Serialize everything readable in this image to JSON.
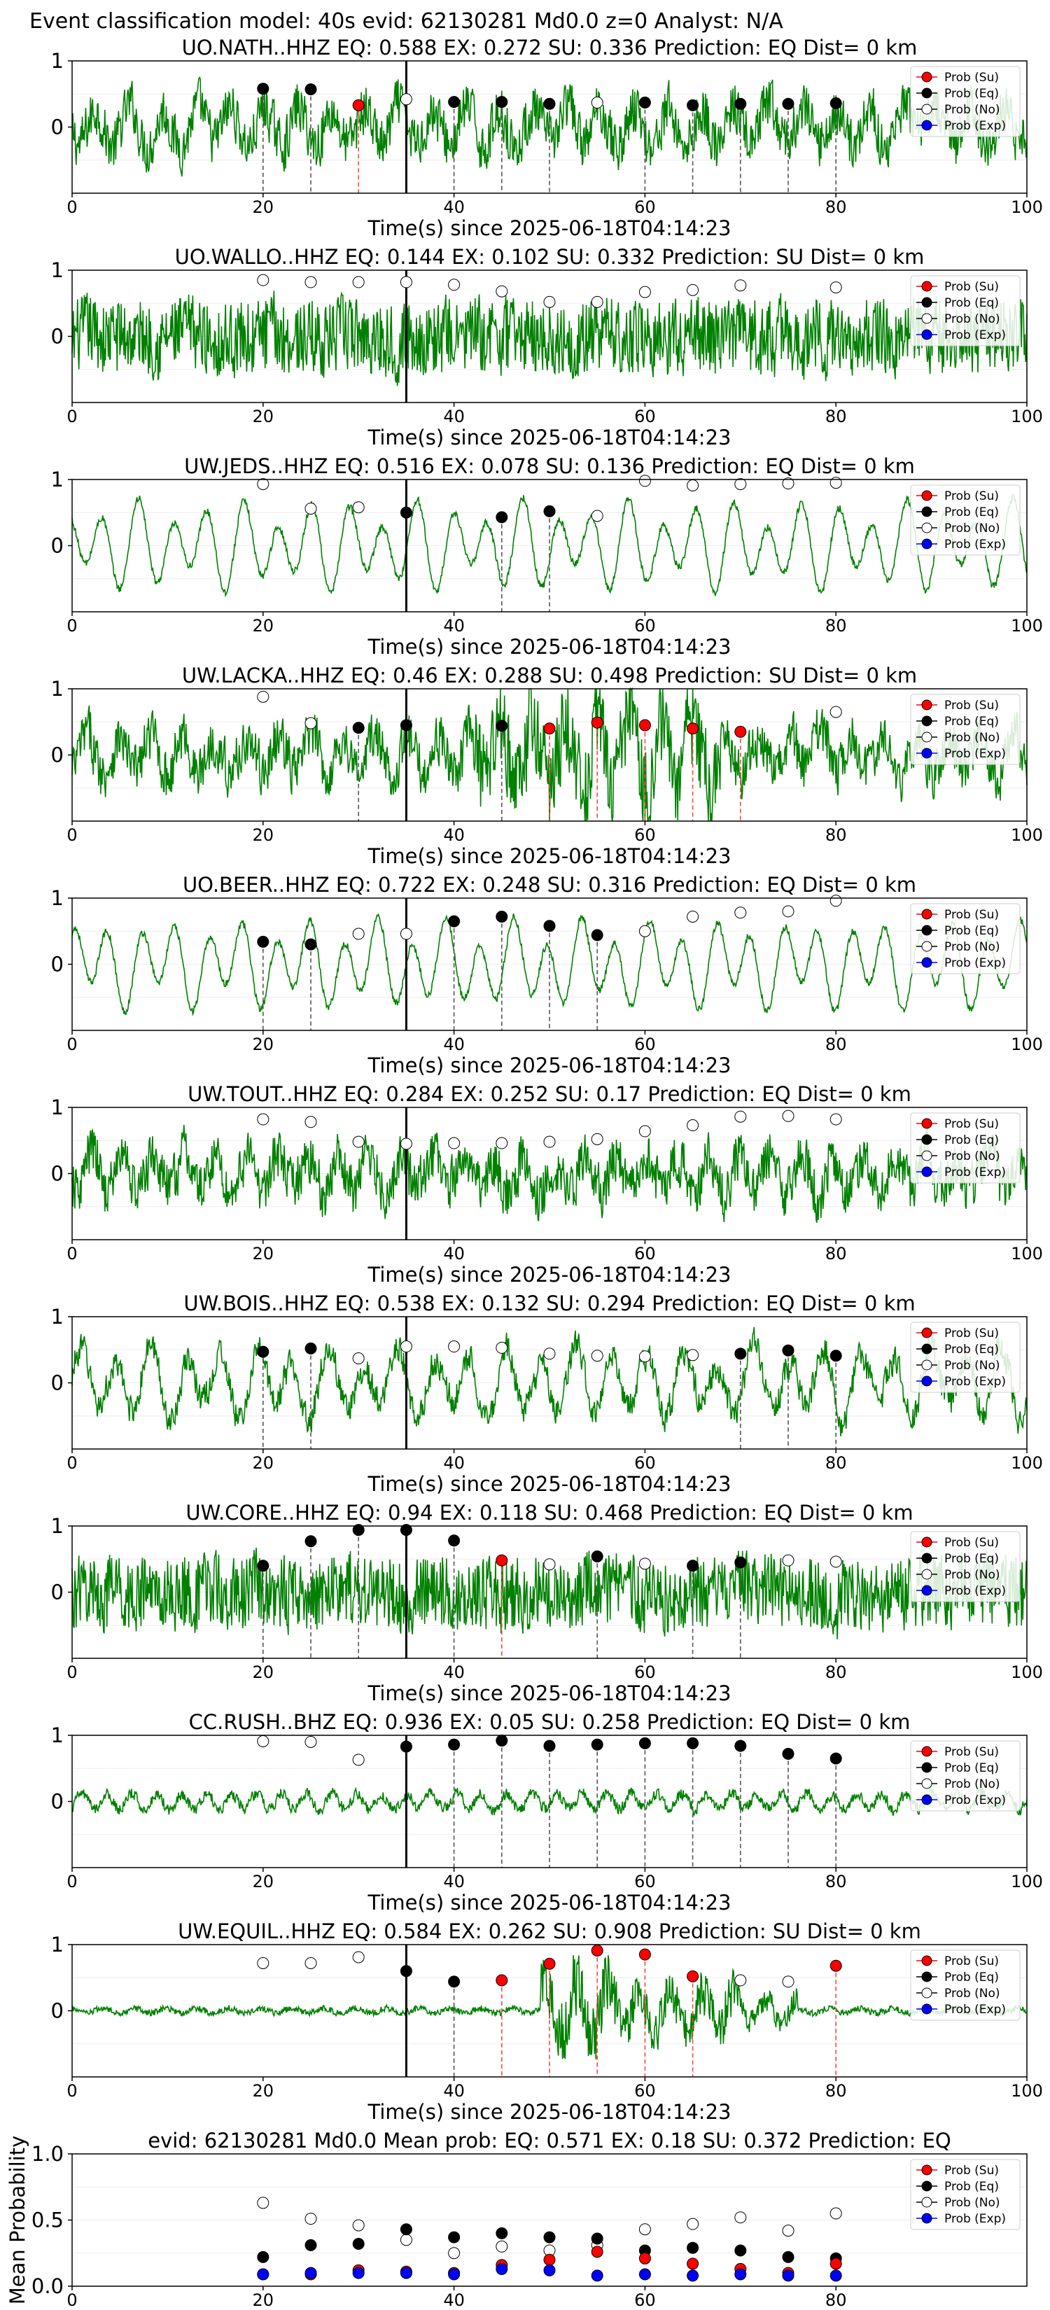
{
  "suptitle": "Event classification model: 40s evid: 62130281 Md0.0 z=0 Analyst: N/A",
  "xlabel": "Time(s) since 2025-06-18T04:14:23",
  "legend": {
    "su": "Prob (Su)",
    "eq": "Prob (Eq)",
    "no": "Prob (No)",
    "exp": "Prob (Exp)"
  },
  "colors": {
    "trace": "#008000",
    "su": "#ff0000",
    "eq": "#000000",
    "no": "#ffffff",
    "exp": "#0000ff",
    "eq_line": "#555555",
    "su_line": "#ff4444"
  },
  "chart_data": [
    {
      "type": "line",
      "title": "UO.NATH..HHZ   EQ: 0.588  EX: 0.272  SU: 0.336   Prediction: EQ    Dist= 0 km",
      "style": "broadband",
      "xlim": [
        0,
        100
      ],
      "ylim": [
        -1,
        1
      ],
      "xticks": [
        0,
        20,
        40,
        60,
        80,
        100
      ],
      "yticks": [
        0,
        1
      ],
      "pick_time": 35,
      "markers": [
        {
          "x": 20,
          "y": 0.58,
          "cls": "eq"
        },
        {
          "x": 25,
          "y": 0.57,
          "cls": "eq"
        },
        {
          "x": 30,
          "y": 0.33,
          "cls": "su"
        },
        {
          "x": 35,
          "y": 0.42,
          "cls": "no"
        },
        {
          "x": 40,
          "y": 0.38,
          "cls": "eq"
        },
        {
          "x": 45,
          "y": 0.38,
          "cls": "eq"
        },
        {
          "x": 50,
          "y": 0.35,
          "cls": "eq"
        },
        {
          "x": 55,
          "y": 0.37,
          "cls": "no"
        },
        {
          "x": 60,
          "y": 0.37,
          "cls": "eq"
        },
        {
          "x": 65,
          "y": 0.33,
          "cls": "eq"
        },
        {
          "x": 70,
          "y": 0.35,
          "cls": "eq"
        },
        {
          "x": 75,
          "y": 0.35,
          "cls": "eq"
        },
        {
          "x": 80,
          "y": 0.36,
          "cls": "eq"
        }
      ]
    },
    {
      "type": "line",
      "title": "UO.WALLO..HHZ   EQ: 0.144  EX: 0.102  SU: 0.332   Prediction: SU    Dist= 0 km",
      "style": "noisy",
      "xlim": [
        0,
        100
      ],
      "ylim": [
        -1,
        1
      ],
      "xticks": [
        0,
        20,
        40,
        60,
        80,
        100
      ],
      "yticks": [
        0,
        1
      ],
      "pick_time": 35,
      "markers": [
        {
          "x": 20,
          "y": 0.85,
          "cls": "no"
        },
        {
          "x": 25,
          "y": 0.82,
          "cls": "no"
        },
        {
          "x": 30,
          "y": 0.82,
          "cls": "no"
        },
        {
          "x": 35,
          "y": 0.82,
          "cls": "no"
        },
        {
          "x": 40,
          "y": 0.78,
          "cls": "no"
        },
        {
          "x": 45,
          "y": 0.68,
          "cls": "no"
        },
        {
          "x": 50,
          "y": 0.52,
          "cls": "no"
        },
        {
          "x": 55,
          "y": 0.52,
          "cls": "no"
        },
        {
          "x": 60,
          "y": 0.67,
          "cls": "no"
        },
        {
          "x": 65,
          "y": 0.7,
          "cls": "no"
        },
        {
          "x": 70,
          "y": 0.77,
          "cls": "no"
        },
        {
          "x": 80,
          "y": 0.74,
          "cls": "no"
        }
      ]
    },
    {
      "type": "line",
      "title": "UW.JEDS..HHZ   EQ: 0.516  EX: 0.078  SU: 0.136   Prediction: EQ    Dist= 0 km",
      "style": "smooth",
      "xlim": [
        0,
        100
      ],
      "ylim": [
        -1,
        1
      ],
      "xticks": [
        0,
        20,
        40,
        60,
        80,
        100
      ],
      "yticks": [
        0,
        1
      ],
      "pick_time": 35,
      "markers": [
        {
          "x": 20,
          "y": 0.93,
          "cls": "no"
        },
        {
          "x": 25,
          "y": 0.56,
          "cls": "no"
        },
        {
          "x": 30,
          "y": 0.58,
          "cls": "no"
        },
        {
          "x": 35,
          "y": 0.5,
          "cls": "eq"
        },
        {
          "x": 45,
          "y": 0.43,
          "cls": "eq"
        },
        {
          "x": 50,
          "y": 0.52,
          "cls": "eq"
        },
        {
          "x": 55,
          "y": 0.45,
          "cls": "no"
        },
        {
          "x": 60,
          "y": 0.98,
          "cls": "no"
        },
        {
          "x": 65,
          "y": 0.91,
          "cls": "no"
        },
        {
          "x": 70,
          "y": 0.93,
          "cls": "no"
        },
        {
          "x": 75,
          "y": 0.94,
          "cls": "no"
        },
        {
          "x": 80,
          "y": 0.95,
          "cls": "no"
        }
      ]
    },
    {
      "type": "line",
      "title": "UW.LACKA..HHZ   EQ: 0.46  EX: 0.288  SU: 0.498   Prediction: SU    Dist= 0 km",
      "style": "burst",
      "xlim": [
        0,
        100
      ],
      "ylim": [
        -1,
        1
      ],
      "xticks": [
        0,
        20,
        40,
        60,
        80,
        100
      ],
      "yticks": [
        0,
        1
      ],
      "pick_time": 35,
      "markers": [
        {
          "x": 20,
          "y": 0.88,
          "cls": "no"
        },
        {
          "x": 25,
          "y": 0.48,
          "cls": "no"
        },
        {
          "x": 30,
          "y": 0.41,
          "cls": "eq"
        },
        {
          "x": 35,
          "y": 0.45,
          "cls": "eq"
        },
        {
          "x": 45,
          "y": 0.44,
          "cls": "eq"
        },
        {
          "x": 50,
          "y": 0.4,
          "cls": "su"
        },
        {
          "x": 55,
          "y": 0.49,
          "cls": "su"
        },
        {
          "x": 60,
          "y": 0.45,
          "cls": "su"
        },
        {
          "x": 65,
          "y": 0.4,
          "cls": "su"
        },
        {
          "x": 70,
          "y": 0.35,
          "cls": "su"
        },
        {
          "x": 80,
          "y": 0.65,
          "cls": "no"
        }
      ]
    },
    {
      "type": "line",
      "title": "UO.BEER..HHZ   EQ: 0.722  EX: 0.248  SU: 0.316   Prediction: EQ    Dist= 0 km",
      "style": "smooth",
      "xlim": [
        0,
        100
      ],
      "ylim": [
        -1,
        1
      ],
      "xticks": [
        0,
        20,
        40,
        60,
        80,
        100
      ],
      "yticks": [
        0,
        1
      ],
      "pick_time": 35,
      "markers": [
        {
          "x": 20,
          "y": 0.34,
          "cls": "eq"
        },
        {
          "x": 25,
          "y": 0.3,
          "cls": "eq"
        },
        {
          "x": 30,
          "y": 0.46,
          "cls": "no"
        },
        {
          "x": 35,
          "y": 0.46,
          "cls": "no"
        },
        {
          "x": 40,
          "y": 0.65,
          "cls": "eq"
        },
        {
          "x": 45,
          "y": 0.72,
          "cls": "eq"
        },
        {
          "x": 50,
          "y": 0.58,
          "cls": "eq"
        },
        {
          "x": 55,
          "y": 0.44,
          "cls": "eq"
        },
        {
          "x": 60,
          "y": 0.5,
          "cls": "no"
        },
        {
          "x": 65,
          "y": 0.72,
          "cls": "no"
        },
        {
          "x": 70,
          "y": 0.78,
          "cls": "no"
        },
        {
          "x": 75,
          "y": 0.8,
          "cls": "no"
        },
        {
          "x": 80,
          "y": 0.96,
          "cls": "no"
        }
      ]
    },
    {
      "type": "line",
      "title": "UW.TOUT..HHZ   EQ: 0.284  EX: 0.252  SU: 0.17   Prediction: EQ    Dist= 0 km",
      "style": "broadband",
      "xlim": [
        0,
        100
      ],
      "ylim": [
        -1,
        1
      ],
      "xticks": [
        0,
        20,
        40,
        60,
        80,
        100
      ],
      "yticks": [
        0,
        1
      ],
      "pick_time": 35,
      "markers": [
        {
          "x": 20,
          "y": 0.82,
          "cls": "no"
        },
        {
          "x": 25,
          "y": 0.78,
          "cls": "no"
        },
        {
          "x": 30,
          "y": 0.48,
          "cls": "no"
        },
        {
          "x": 35,
          "y": 0.45,
          "cls": "no"
        },
        {
          "x": 40,
          "y": 0.46,
          "cls": "no"
        },
        {
          "x": 45,
          "y": 0.46,
          "cls": "no"
        },
        {
          "x": 50,
          "y": 0.48,
          "cls": "no"
        },
        {
          "x": 55,
          "y": 0.52,
          "cls": "no"
        },
        {
          "x": 60,
          "y": 0.64,
          "cls": "no"
        },
        {
          "x": 65,
          "y": 0.73,
          "cls": "no"
        },
        {
          "x": 70,
          "y": 0.86,
          "cls": "no"
        },
        {
          "x": 75,
          "y": 0.87,
          "cls": "no"
        },
        {
          "x": 80,
          "y": 0.82,
          "cls": "no"
        }
      ]
    },
    {
      "type": "line",
      "title": "UW.BOIS..HHZ   EQ: 0.538  EX: 0.132  SU: 0.294   Prediction: EQ    Dist= 0 km",
      "style": "smoothnoisy",
      "xlim": [
        0,
        100
      ],
      "ylim": [
        -1,
        1
      ],
      "xticks": [
        0,
        20,
        40,
        60,
        80,
        100
      ],
      "yticks": [
        0,
        1
      ],
      "pick_time": 35,
      "markers": [
        {
          "x": 20,
          "y": 0.47,
          "cls": "eq"
        },
        {
          "x": 25,
          "y": 0.52,
          "cls": "eq"
        },
        {
          "x": 30,
          "y": 0.37,
          "cls": "no"
        },
        {
          "x": 35,
          "y": 0.55,
          "cls": "no"
        },
        {
          "x": 40,
          "y": 0.55,
          "cls": "no"
        },
        {
          "x": 45,
          "y": 0.53,
          "cls": "no"
        },
        {
          "x": 50,
          "y": 0.44,
          "cls": "no"
        },
        {
          "x": 55,
          "y": 0.41,
          "cls": "no"
        },
        {
          "x": 60,
          "y": 0.4,
          "cls": "no"
        },
        {
          "x": 65,
          "y": 0.42,
          "cls": "no"
        },
        {
          "x": 70,
          "y": 0.44,
          "cls": "eq"
        },
        {
          "x": 75,
          "y": 0.49,
          "cls": "eq"
        },
        {
          "x": 80,
          "y": 0.41,
          "cls": "eq"
        }
      ]
    },
    {
      "type": "line",
      "title": "UW.CORE..HHZ   EQ: 0.94  EX: 0.118  SU: 0.468   Prediction: EQ    Dist= 0 km",
      "style": "noisy",
      "xlim": [
        0,
        100
      ],
      "ylim": [
        -1,
        1
      ],
      "xticks": [
        0,
        20,
        40,
        60,
        80,
        100
      ],
      "yticks": [
        0,
        1
      ],
      "pick_time": 35,
      "markers": [
        {
          "x": 20,
          "y": 0.4,
          "cls": "eq"
        },
        {
          "x": 25,
          "y": 0.77,
          "cls": "eq"
        },
        {
          "x": 30,
          "y": 0.94,
          "cls": "eq"
        },
        {
          "x": 35,
          "y": 0.94,
          "cls": "eq"
        },
        {
          "x": 40,
          "y": 0.78,
          "cls": "eq"
        },
        {
          "x": 45,
          "y": 0.48,
          "cls": "su"
        },
        {
          "x": 50,
          "y": 0.42,
          "cls": "no"
        },
        {
          "x": 55,
          "y": 0.54,
          "cls": "eq"
        },
        {
          "x": 60,
          "y": 0.43,
          "cls": "no"
        },
        {
          "x": 65,
          "y": 0.4,
          "cls": "eq"
        },
        {
          "x": 70,
          "y": 0.45,
          "cls": "eq"
        },
        {
          "x": 75,
          "y": 0.48,
          "cls": "no"
        },
        {
          "x": 80,
          "y": 0.46,
          "cls": "no"
        }
      ]
    },
    {
      "type": "line",
      "title": "CC.RUSH..BHZ   EQ: 0.936  EX: 0.05  SU: 0.258   Prediction: EQ    Dist= 0 km",
      "style": "quiet",
      "xlim": [
        0,
        100
      ],
      "ylim": [
        -1,
        1
      ],
      "xticks": [
        0,
        20,
        40,
        60,
        80,
        100
      ],
      "yticks": [
        0,
        1
      ],
      "pick_time": 35,
      "markers": [
        {
          "x": 20,
          "y": 0.91,
          "cls": "no"
        },
        {
          "x": 25,
          "y": 0.9,
          "cls": "no"
        },
        {
          "x": 30,
          "y": 0.63,
          "cls": "no"
        },
        {
          "x": 35,
          "y": 0.83,
          "cls": "eq"
        },
        {
          "x": 40,
          "y": 0.86,
          "cls": "eq"
        },
        {
          "x": 45,
          "y": 0.92,
          "cls": "eq"
        },
        {
          "x": 50,
          "y": 0.84,
          "cls": "eq"
        },
        {
          "x": 55,
          "y": 0.86,
          "cls": "eq"
        },
        {
          "x": 60,
          "y": 0.88,
          "cls": "eq"
        },
        {
          "x": 65,
          "y": 0.88,
          "cls": "eq"
        },
        {
          "x": 70,
          "y": 0.84,
          "cls": "eq"
        },
        {
          "x": 75,
          "y": 0.72,
          "cls": "eq"
        },
        {
          "x": 80,
          "y": 0.65,
          "cls": "eq"
        }
      ]
    },
    {
      "type": "line",
      "title": "UW.EQUIL..HHZ   EQ: 0.584  EX: 0.262  SU: 0.908   Prediction: SU    Dist= 0 km",
      "style": "bigburst",
      "xlim": [
        0,
        100
      ],
      "ylim": [
        -1,
        1
      ],
      "xticks": [
        0,
        20,
        40,
        60,
        80,
        100
      ],
      "yticks": [
        0,
        1
      ],
      "pick_time": 35,
      "markers": [
        {
          "x": 20,
          "y": 0.72,
          "cls": "no"
        },
        {
          "x": 25,
          "y": 0.72,
          "cls": "no"
        },
        {
          "x": 30,
          "y": 0.81,
          "cls": "no"
        },
        {
          "x": 35,
          "y": 0.6,
          "cls": "eq"
        },
        {
          "x": 40,
          "y": 0.44,
          "cls": "eq"
        },
        {
          "x": 45,
          "y": 0.46,
          "cls": "su"
        },
        {
          "x": 50,
          "y": 0.71,
          "cls": "su"
        },
        {
          "x": 55,
          "y": 0.91,
          "cls": "su"
        },
        {
          "x": 60,
          "y": 0.85,
          "cls": "su"
        },
        {
          "x": 65,
          "y": 0.52,
          "cls": "su"
        },
        {
          "x": 70,
          "y": 0.46,
          "cls": "no"
        },
        {
          "x": 75,
          "y": 0.44,
          "cls": "no"
        },
        {
          "x": 80,
          "y": 0.68,
          "cls": "su"
        }
      ]
    },
    {
      "type": "scatter",
      "title": "evid: 62130281  Md0.0    Mean prob:    EQ: 0.571  EX: 0.18  SU: 0.372   Prediction: EQ",
      "ylabel": "Mean Probability",
      "xlim": [
        0,
        100
      ],
      "ylim": [
        0,
        1
      ],
      "xticks": [
        0,
        20,
        40,
        60,
        80
      ],
      "yticks": [
        0.0,
        0.5,
        1.0
      ],
      "x": [
        20,
        25,
        30,
        35,
        40,
        45,
        50,
        55,
        60,
        65,
        70,
        75,
        80
      ],
      "series": [
        {
          "cls": "no",
          "values": [
            0.63,
            0.51,
            0.46,
            0.35,
            0.25,
            0.3,
            0.27,
            0.31,
            0.43,
            0.47,
            0.52,
            0.42,
            0.55
          ]
        },
        {
          "cls": "eq",
          "values": [
            0.22,
            0.31,
            0.32,
            0.43,
            0.37,
            0.4,
            0.37,
            0.36,
            0.27,
            0.29,
            0.27,
            0.22,
            0.21
          ]
        },
        {
          "cls": "su",
          "values": [
            0.09,
            0.09,
            0.12,
            0.11,
            0.1,
            0.16,
            0.2,
            0.26,
            0.21,
            0.17,
            0.13,
            0.1,
            0.17
          ]
        },
        {
          "cls": "exp",
          "values": [
            0.09,
            0.1,
            0.1,
            0.1,
            0.09,
            0.13,
            0.12,
            0.08,
            0.09,
            0.08,
            0.09,
            0.08,
            0.08
          ]
        }
      ]
    }
  ]
}
